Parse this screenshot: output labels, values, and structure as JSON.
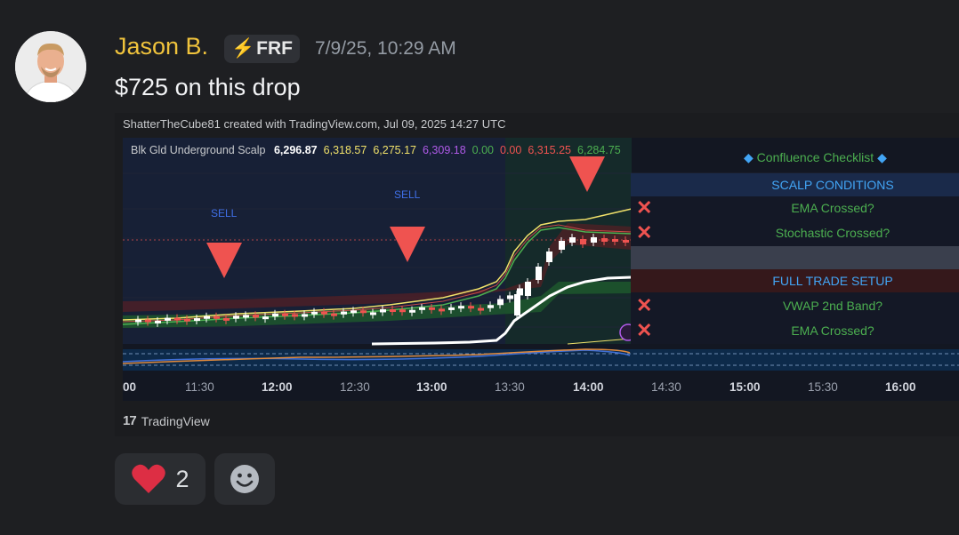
{
  "message": {
    "username": "Jason B.",
    "badge": {
      "icon": "lightning-bolt",
      "text": "FRF"
    },
    "timestamp": "7/9/25, 10:29 AM",
    "text": "$725 on this drop"
  },
  "chart": {
    "credit": "ShatterTheCube81 created with TradingView.com, Jul 09, 2025 14:27 UTC",
    "indicator_name": "Blk Gld Underground Scalp",
    "indicator_values": [
      {
        "value": "6,296.87",
        "color": "#ffffff"
      },
      {
        "value": "6,318.57",
        "color": "#f0e16a"
      },
      {
        "value": "6,275.17",
        "color": "#f0e16a"
      },
      {
        "value": "6,309.18",
        "color": "#b05ae8"
      },
      {
        "value": "0.00",
        "color": "#4caf50"
      },
      {
        "value": "0.00",
        "color": "#ef5350"
      },
      {
        "value": "6,315.25",
        "color": "#ef5350"
      },
      {
        "value": "6,284.75",
        "color": "#4caf50"
      }
    ],
    "signals": [
      {
        "label": "SELL"
      },
      {
        "label": "SELL"
      }
    ],
    "checklist": {
      "title": "Confluence Checklist",
      "rows": [
        {
          "text": "SCALP CONDITIONS",
          "type": "header",
          "mark": ""
        },
        {
          "text": "EMA Crossed?",
          "type": "item",
          "mark": "✕"
        },
        {
          "text": "Stochastic Crossed?",
          "type": "item",
          "mark": "✕"
        },
        {
          "text": "",
          "type": "spacer",
          "mark": ""
        },
        {
          "text": "FULL TRADE SETUP",
          "type": "header",
          "mark": ""
        },
        {
          "text": "VWAP 2nd Band?",
          "type": "item",
          "mark": "✕"
        },
        {
          "text": "EMA Crossed?",
          "type": "item",
          "mark": "✕"
        }
      ]
    },
    "time_axis": [
      "00",
      "11:30",
      "12:00",
      "12:30",
      "13:00",
      "13:30",
      "14:00",
      "14:30",
      "15:00",
      "15:30",
      "16:00"
    ],
    "watermark": "TradingView",
    "colors": {
      "up_candle": "#ffffff",
      "down_candle": "#ef5350",
      "sell_arrow": "#ef5350",
      "ema_fast": "#f0e16a",
      "ema_slow": "#4caf50",
      "vwap": "#ffffff",
      "checklist_text": "#4caf50",
      "checklist_header": "#42a5f5",
      "mark": "#ef5350"
    }
  },
  "reactions": [
    {
      "emoji": "heart",
      "count": "2"
    }
  ]
}
